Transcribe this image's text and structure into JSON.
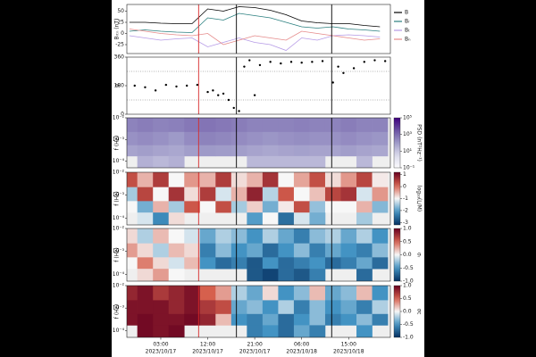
{
  "chart_data": [
    {
      "type": "line",
      "ylabel": "Bᵣₜₙ (nT)",
      "legend": "right",
      "xlim": [
        "2023-10-16T20:30",
        "2023-10-18T23:00"
      ],
      "ylim": [
        -45,
        65
      ],
      "yticks": [
        -25,
        0,
        25,
        50
      ],
      "markers": [
        {
          "x": "2023-10-17T10:15",
          "color": "#d62728"
        },
        {
          "x": "2023-10-17T17:30",
          "color": "#000000"
        },
        {
          "x": "2023-10-18T11:45",
          "color": "#000000"
        }
      ],
      "x": [
        "2023-10-16T21:00",
        "2023-10-17T00:00",
        "2023-10-17T03:00",
        "2023-10-17T06:00",
        "2023-10-17T09:00",
        "2023-10-17T12:00",
        "2023-10-17T15:00",
        "2023-10-17T18:00",
        "2023-10-17T21:00",
        "2023-10-18T00:00",
        "2023-10-18T03:00",
        "2023-10-18T06:00",
        "2023-10-18T09:00",
        "2023-10-18T12:00",
        "2023-10-18T15:00",
        "2023-10-18T18:00",
        "2023-10-18T21:00"
      ],
      "series": [
        {
          "name": "B",
          "color": "#000000",
          "values": [
            25,
            25,
            23,
            22,
            22,
            55,
            50,
            60,
            58,
            52,
            42,
            28,
            24,
            22,
            22,
            18,
            15
          ]
        },
        {
          "name": "Bᵣ",
          "color": "#2a7f7f",
          "values": [
            5,
            8,
            5,
            3,
            2,
            35,
            30,
            45,
            40,
            35,
            25,
            15,
            12,
            15,
            10,
            8,
            5
          ]
        },
        {
          "name": "Bₜ",
          "color": "#b59ae6",
          "values": [
            -5,
            -10,
            -15,
            -12,
            -10,
            -30,
            -20,
            -10,
            -20,
            -25,
            -38,
            -10,
            -15,
            -5,
            -3,
            -5,
            -8
          ]
        },
        {
          "name": "Bₙ",
          "color": "#e58a8a",
          "values": [
            10,
            5,
            0,
            -3,
            -5,
            0,
            -25,
            -15,
            -5,
            -10,
            -15,
            5,
            0,
            -5,
            -10,
            -15,
            -12
          ]
        }
      ]
    },
    {
      "type": "scatter",
      "ylabel": "φ",
      "color": "#000000",
      "xlim": [
        "2023-10-16T20:30",
        "2023-10-18T23:00"
      ],
      "ylim": [
        0,
        360
      ],
      "yticks": [
        0,
        180,
        360
      ],
      "reference_lines": [
        90,
        270
      ],
      "markers": [
        {
          "x": "2023-10-17T10:15",
          "color": "#d62728"
        },
        {
          "x": "2023-10-17T17:30",
          "color": "#000000"
        },
        {
          "x": "2023-10-18T11:45",
          "color": "#000000"
        }
      ],
      "x": [
        "2023-10-16T22:00",
        "2023-10-17T00:00",
        "2023-10-17T02:00",
        "2023-10-17T04:00",
        "2023-10-17T06:00",
        "2023-10-17T08:00",
        "2023-10-17T10:00",
        "2023-10-17T12:00",
        "2023-10-17T13:00",
        "2023-10-17T14:00",
        "2023-10-17T15:00",
        "2023-10-17T16:00",
        "2023-10-17T17:00",
        "2023-10-17T18:00",
        "2023-10-17T19:00",
        "2023-10-17T20:00",
        "2023-10-17T21:00",
        "2023-10-17T22:00",
        "2023-10-18T00:00",
        "2023-10-18T02:00",
        "2023-10-18T04:00",
        "2023-10-18T06:00",
        "2023-10-18T08:00",
        "2023-10-18T10:00",
        "2023-10-18T12:00",
        "2023-10-18T13:00",
        "2023-10-18T14:00",
        "2023-10-18T16:00",
        "2023-10-18T18:00",
        "2023-10-18T20:00",
        "2023-10-18T22:00"
      ],
      "values": [
        180,
        170,
        150,
        185,
        175,
        180,
        185,
        140,
        150,
        120,
        130,
        90,
        40,
        20,
        300,
        340,
        120,
        310,
        330,
        320,
        330,
        325,
        330,
        335,
        200,
        300,
        260,
        290,
        330,
        340,
        335
      ]
    },
    {
      "type": "heatmap",
      "ylabel": "f (Hz)",
      "colorbar_label": "PSD (nT²Hz⁻¹)",
      "colormap": "purples",
      "zscale": "log",
      "yscale": "log",
      "xlim": [
        "2023-10-16T20:30",
        "2023-10-18T23:00"
      ],
      "ylim": [
        5e-05,
        0.01
      ],
      "yticks": [
        {
          "value": 0.0001,
          "label": "10⁻⁴"
        },
        {
          "value": 0.001,
          "label": "10⁻³"
        },
        {
          "value": 0.01,
          "label": "10⁻²"
        }
      ],
      "zlim": [
        0.1,
        100000
      ],
      "zticks": [
        {
          "value": 0.1,
          "label": "10⁻¹"
        },
        {
          "value": 10,
          "label": "10¹"
        },
        {
          "value": 1000,
          "label": "10³"
        },
        {
          "value": 100000,
          "label": "10⁵"
        }
      ],
      "markers": [
        {
          "x": "2023-10-17T10:15",
          "color": "#d62728"
        },
        {
          "x": "2023-10-17T17:30",
          "color": "#000000"
        },
        {
          "x": "2023-10-18T11:45",
          "color": "#000000"
        }
      ],
      "x": [
        "2023-10-16T21:00",
        "2023-10-17T00:00",
        "2023-10-17T03:00",
        "2023-10-17T06:00",
        "2023-10-17T09:00",
        "2023-10-17T12:00",
        "2023-10-17T15:00",
        "2023-10-17T18:00",
        "2023-10-17T21:00",
        "2023-10-18T00:00",
        "2023-10-18T03:00",
        "2023-10-18T06:00",
        "2023-10-18T09:00",
        "2023-10-18T12:00",
        "2023-10-18T15:00",
        "2023-10-18T18:00",
        "2023-10-18T21:00"
      ],
      "y": [
        0.005,
        0.001,
        0.0003,
        0.0001
      ],
      "z": [
        [
          300,
          400,
          300,
          350,
          500,
          600,
          500,
          400,
          300,
          300,
          300,
          350,
          300,
          300,
          400,
          300,
          300
        ],
        [
          150,
          200,
          150,
          100,
          200,
          300,
          250,
          200,
          150,
          120,
          150,
          180,
          150,
          150,
          200,
          150,
          120
        ],
        [
          60,
          80,
          60,
          50,
          80,
          100,
          90,
          80,
          60,
          50,
          60,
          70,
          60,
          60,
          80,
          60,
          50
        ],
        [
          null,
          30,
          20,
          30,
          null,
          null,
          null,
          null,
          20,
          20,
          20,
          20,
          20,
          null,
          null,
          20,
          null
        ]
      ]
    },
    {
      "type": "heatmap",
      "ylabel": "f (Hz)",
      "colorbar_label": "log₁₀(L/M)",
      "colormap": "rdbu",
      "yscale": "log",
      "xlim": [
        "2023-10-16T20:30",
        "2023-10-18T23:00"
      ],
      "ylim": [
        5e-05,
        0.01
      ],
      "yticks": [
        {
          "value": 0.0001,
          "label": "10⁻⁴"
        },
        {
          "value": 0.001,
          "label": "10⁻³"
        },
        {
          "value": 0.01,
          "label": "10⁻²"
        }
      ],
      "zlim": [
        -3.2,
        1.2
      ],
      "zticks": [
        -3,
        -2,
        -1,
        0,
        1
      ],
      "markers": [
        {
          "x": "2023-10-17T10:15",
          "color": "#d62728"
        },
        {
          "x": "2023-10-17T17:30",
          "color": "#000000"
        },
        {
          "x": "2023-10-18T11:45",
          "color": "#000000"
        }
      ],
      "x": [
        "2023-10-16T21:00",
        "2023-10-17T00:00",
        "2023-10-17T03:00",
        "2023-10-17T06:00",
        "2023-10-17T09:00",
        "2023-10-17T12:00",
        "2023-10-17T15:00",
        "2023-10-17T18:00",
        "2023-10-17T21:00",
        "2023-10-18T00:00",
        "2023-10-18T03:00",
        "2023-10-18T06:00",
        "2023-10-18T09:00",
        "2023-10-18T12:00",
        "2023-10-18T15:00",
        "2023-10-18T18:00",
        "2023-10-18T21:00"
      ],
      "y": [
        0.005,
        0.001,
        0.0003,
        0.0001
      ],
      "z": [
        [
          0.3,
          -0.5,
          0.5,
          -1,
          -0.3,
          -0.5,
          0.5,
          -0.8,
          -0.5,
          0.6,
          -1,
          -0.4,
          0.3,
          -0.8,
          -0.3,
          0.4,
          -0.9
        ],
        [
          -1.5,
          0.4,
          -1,
          0.6,
          -0.8,
          0.5,
          -1.2,
          -0.5,
          0.8,
          -1.4,
          0.2,
          -1,
          -0.6,
          0.4,
          0.6,
          -1.2,
          -0.3
        ],
        [
          -1,
          -1.8,
          -0.5,
          -1.5,
          0.2,
          -1,
          0.3,
          -1.5,
          -0.7,
          -1.8,
          -0.9,
          0.3,
          -1.6,
          -1,
          -1,
          -0.5,
          -1.7
        ],
        [
          null,
          -1.2,
          -2.2,
          -0.8,
          null,
          null,
          null,
          null,
          -2,
          -1,
          -2.5,
          -1.2,
          -1.8,
          null,
          null,
          -1.5,
          null
        ]
      ]
    },
    {
      "type": "heatmap",
      "ylabel": "f (Hz)",
      "colorbar_label": "σᵣ",
      "colormap": "rdbu",
      "yscale": "log",
      "xlim": [
        "2023-10-16T20:30",
        "2023-10-18T23:00"
      ],
      "ylim": [
        5e-05,
        0.01
      ],
      "yticks": [
        {
          "value": 0.0001,
          "label": "10⁻⁴"
        },
        {
          "value": 0.001,
          "label": "10⁻³"
        },
        {
          "value": 0.01,
          "label": "10⁻²"
        }
      ],
      "zlim": [
        -1,
        1
      ],
      "zticks": [
        {
          "value": -1,
          "label": "-1.0"
        },
        -0.5,
        {
          "value": 0,
          "label": "0.0"
        },
        0.5,
        {
          "value": 1,
          "label": "1.0"
        }
      ],
      "markers": [
        {
          "x": "2023-10-17T10:15",
          "color": "#d62728"
        },
        {
          "x": "2023-10-17T17:30",
          "color": "#000000"
        },
        {
          "x": "2023-10-18T11:45",
          "color": "#000000"
        }
      ],
      "x": [
        "2023-10-16T21:00",
        "2023-10-17T00:00",
        "2023-10-17T03:00",
        "2023-10-17T06:00",
        "2023-10-17T09:00",
        "2023-10-17T12:00",
        "2023-10-17T15:00",
        "2023-10-17T18:00",
        "2023-10-17T21:00",
        "2023-10-18T00:00",
        "2023-10-18T03:00",
        "2023-10-18T06:00",
        "2023-10-18T09:00",
        "2023-10-18T12:00",
        "2023-10-18T15:00",
        "2023-10-18T18:00",
        "2023-10-18T21:00"
      ],
      "y": [
        0.005,
        0.001,
        0.0003,
        0.0001
      ],
      "z": [
        [
          0.1,
          -0.2,
          0.2,
          0,
          -0.1,
          -0.4,
          -0.2,
          -0.3,
          -0.5,
          -0.2,
          -0.4,
          -0.6,
          -0.3,
          -0.2,
          -0.4,
          -0.2,
          -0.5
        ],
        [
          0.3,
          0.1,
          -0.2,
          0.2,
          0.1,
          -0.6,
          -0.3,
          -0.5,
          -0.4,
          -0.7,
          -0.5,
          -0.3,
          -0.6,
          -0.4,
          -0.5,
          -0.6,
          -0.3
        ],
        [
          0,
          0.4,
          0.1,
          -0.1,
          0.2,
          -0.5,
          -0.7,
          -0.6,
          -0.8,
          -0.5,
          -0.7,
          -0.6,
          -0.5,
          -0.7,
          -0.6,
          -0.4,
          -0.7
        ],
        [
          null,
          0.1,
          0.3,
          0,
          null,
          null,
          null,
          null,
          -0.8,
          -0.9,
          -0.7,
          -0.8,
          -0.6,
          null,
          null,
          -0.7,
          null
        ]
      ]
    },
    {
      "type": "heatmap",
      "ylabel": "f (Hz)",
      "colorbar_label": "σc",
      "colormap": "rdbu",
      "yscale": "log",
      "xlim": [
        "2023-10-16T20:30",
        "2023-10-18T23:00"
      ],
      "ylim": [
        5e-05,
        0.01
      ],
      "yticks": [
        {
          "value": 0.0001,
          "label": "10⁻⁴"
        },
        {
          "value": 0.001,
          "label": "10⁻³"
        },
        {
          "value": 0.01,
          "label": "10⁻²"
        }
      ],
      "zlim": [
        -1,
        1
      ],
      "zticks": [
        {
          "value": -1,
          "label": "-1.0"
        },
        -0.5,
        {
          "value": 0,
          "label": "0.0"
        },
        0.5,
        {
          "value": 1,
          "label": "1.0"
        }
      ],
      "markers": [
        {
          "x": "2023-10-17T10:15",
          "color": "#d62728"
        },
        {
          "x": "2023-10-17T17:30",
          "color": "#000000"
        },
        {
          "x": "2023-10-18T11:45",
          "color": "#000000"
        }
      ],
      "xticks": [
        {
          "value": "2023-10-17T03:00",
          "label": [
            "03:00",
            "2023/10/17"
          ]
        },
        {
          "value": "2023-10-17T12:00",
          "label": [
            "12:00",
            "2023/10/17"
          ]
        },
        {
          "value": "2023-10-17T21:00",
          "label": [
            "21:00",
            "2023/10/17"
          ]
        },
        {
          "value": "2023-10-18T06:00",
          "label": [
            "06:00",
            "2023/10/18"
          ]
        },
        {
          "value": "2023-10-18T15:00",
          "label": [
            "15:00",
            "2023/10/18"
          ]
        }
      ],
      "x": [
        "2023-10-16T21:00",
        "2023-10-17T00:00",
        "2023-10-17T03:00",
        "2023-10-17T06:00",
        "2023-10-17T09:00",
        "2023-10-17T12:00",
        "2023-10-17T15:00",
        "2023-10-17T18:00",
        "2023-10-17T21:00",
        "2023-10-18T00:00",
        "2023-10-18T03:00",
        "2023-10-18T06:00",
        "2023-10-18T09:00",
        "2023-10-18T12:00",
        "2023-10-18T15:00",
        "2023-10-18T18:00",
        "2023-10-18T21:00"
      ],
      "y": [
        0.005,
        0.001,
        0.0003,
        0.0001
      ],
      "z": [
        [
          0.8,
          0.9,
          0.7,
          0.8,
          0.9,
          0.5,
          0.3,
          -0.2,
          -0.4,
          0.1,
          -0.5,
          -0.3,
          0.2,
          -0.4,
          -0.3,
          0.2,
          -0.5
        ],
        [
          0.9,
          0.9,
          0.9,
          0.8,
          0.9,
          0.7,
          0.6,
          -0.4,
          -0.3,
          -0.5,
          -0.2,
          -0.6,
          -0.3,
          -0.5,
          -0.4,
          -0.6,
          -0.2
        ],
        [
          0.9,
          0.95,
          0.9,
          0.9,
          0.95,
          0.8,
          0.2,
          -0.5,
          -0.6,
          -0.4,
          -0.7,
          -0.5,
          -0.3,
          -0.6,
          -0.5,
          -0.3,
          -0.6
        ],
        [
          null,
          0.95,
          0.9,
          0.95,
          null,
          null,
          null,
          null,
          -0.6,
          -0.5,
          -0.7,
          -0.4,
          -0.6,
          null,
          null,
          -0.5,
          null
        ]
      ]
    }
  ]
}
